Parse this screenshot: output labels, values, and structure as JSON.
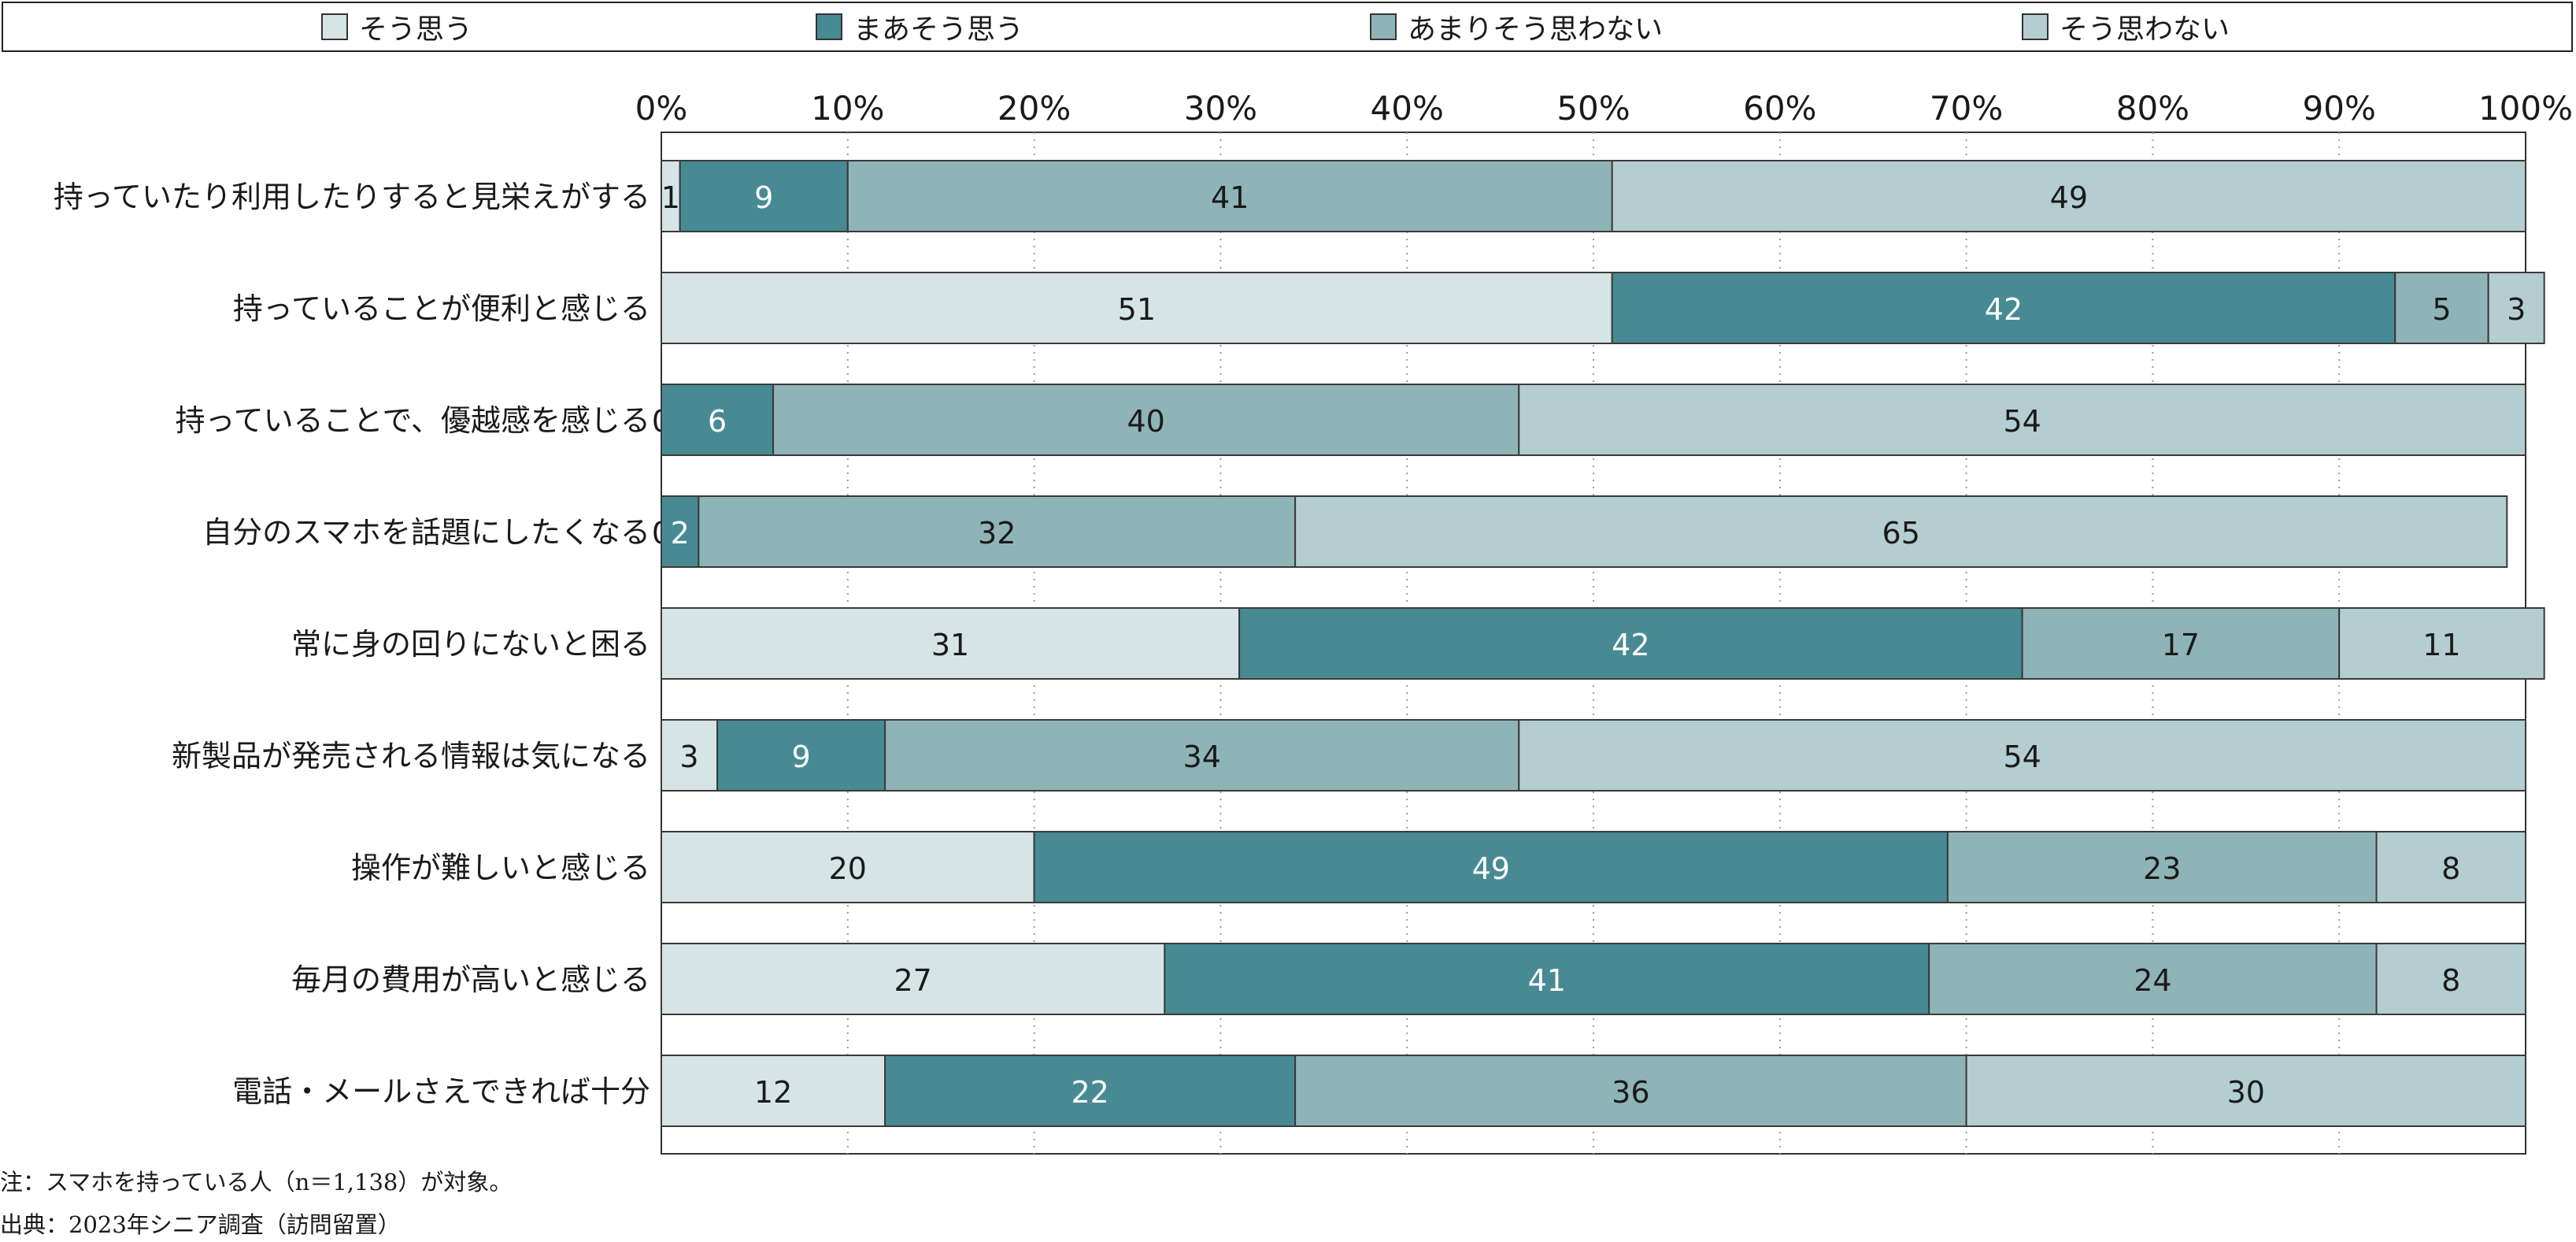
{
  "chart_data": {
    "type": "bar",
    "stacked": true,
    "orientation": "horizontal",
    "categories": [
      "持っていたり利用したりすると見栄えがする",
      "持っていることが便利と感じる",
      "持っていることで、優越感を感じる",
      "自分のスマホを話題にしたくなる",
      "常に身の回りにないと困る",
      "新製品が発売される情報は気になる",
      "操作が難しいと感じる",
      "毎月の費用が高いと感じる",
      "電話・メールさえできれば十分"
    ],
    "series": [
      {
        "name": "そう思う",
        "color": "#d6e4e5",
        "values": [
          1,
          51,
          0,
          0,
          31,
          3,
          20,
          27,
          12
        ]
      },
      {
        "name": "まあそう思う",
        "color": "#478a94",
        "values": [
          9,
          42,
          6,
          2,
          42,
          9,
          49,
          41,
          22
        ]
      },
      {
        "name": "あまりそう思わない",
        "color": "#8fb4b8",
        "values": [
          41,
          5,
          40,
          32,
          17,
          34,
          23,
          24,
          36
        ]
      },
      {
        "name": "そう思わない",
        "color": "#b4cdd1",
        "values": [
          49,
          3,
          54,
          65,
          11,
          54,
          8,
          8,
          30
        ]
      }
    ],
    "xlim": [
      0,
      100
    ],
    "x_ticks": [
      "0%",
      "10%",
      "20%",
      "30%",
      "40%",
      "50%",
      "60%",
      "70%",
      "80%",
      "90%",
      "100%"
    ],
    "grid": "vertical-dotted",
    "legend": "top"
  },
  "notes": {
    "note": "注：スマホを持っている人（n＝1,138）が対象。",
    "source": "出典：2023年シニア調査（訪問留置）"
  }
}
